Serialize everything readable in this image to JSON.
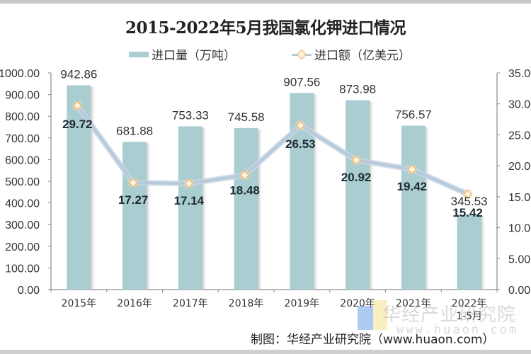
{
  "chart_data": {
    "type": "bar",
    "title": "2015-2022年5月我国氯化钾进口情况",
    "categories": [
      "2015年",
      "2016年",
      "2017年",
      "2018年",
      "2019年",
      "2020年",
      "2021年",
      "2022年\n1-5月"
    ],
    "category_lines": [
      [
        "2015年"
      ],
      [
        "2016年"
      ],
      [
        "2017年"
      ],
      [
        "2018年"
      ],
      [
        "2019年"
      ],
      [
        "2020年"
      ],
      [
        "2021年"
      ],
      [
        "2022年",
        "1-5月"
      ]
    ],
    "series": [
      {
        "name": "进口量（万吨）",
        "type": "bar",
        "axis": "left",
        "color": "#a9cdd1",
        "values": [
          942.86,
          681.88,
          753.33,
          745.58,
          907.56,
          873.98,
          756.57,
          345.53
        ],
        "labels": [
          "942.86",
          "681.88",
          "753.33",
          "745.58",
          "907.56",
          "873.98",
          "756.57",
          "345.53"
        ]
      },
      {
        "name": "进口额（亿美元）",
        "type": "line",
        "axis": "right",
        "color": "#b7cadc",
        "marker_color": "#fff3dc",
        "values": [
          29.72,
          17.27,
          17.14,
          18.48,
          26.53,
          20.92,
          19.42,
          15.42
        ],
        "labels": [
          "29.72",
          "17.27",
          "17.14",
          "18.48",
          "26.53",
          "20.92",
          "19.42",
          "15.42"
        ]
      }
    ],
    "y_left": {
      "min": 0,
      "max": 1000,
      "step": 100,
      "ticks": [
        "0.00",
        "100.00",
        "200.00",
        "300.00",
        "400.00",
        "500.00",
        "600.00",
        "700.00",
        "800.00",
        "900.00",
        "1000.00"
      ]
    },
    "y_right": {
      "min": 0,
      "max": 35,
      "step": 5,
      "ticks": [
        "0.00",
        "5.00",
        "10.00",
        "15.00",
        "20.00",
        "25.00",
        "30.00",
        "35.00"
      ]
    },
    "grid": false,
    "legend_position": "top"
  },
  "legend": {
    "bar_label": "进口量（万吨）",
    "line_label": "进口额（亿美元）"
  },
  "footer": {
    "source": "制图：华经产业研究院（www.huaon.com）",
    "watermark": "华经产业研究院",
    "watermark_url": "www.huaon.com"
  }
}
